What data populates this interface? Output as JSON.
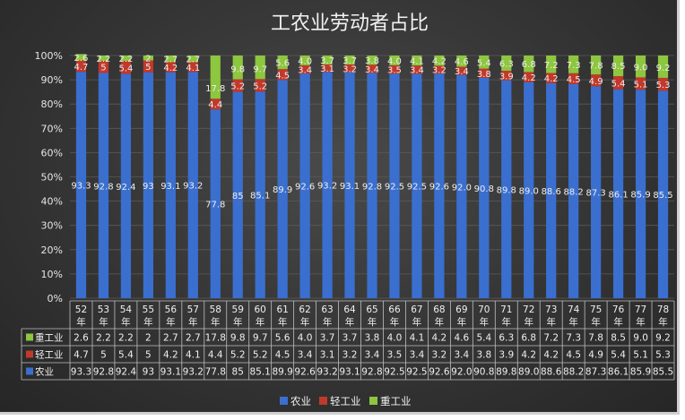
{
  "chart_data": {
    "type": "bar",
    "stacked": true,
    "title": "工农业劳动者占比",
    "categories": [
      "52年",
      "53年",
      "54年",
      "55年",
      "56年",
      "57年",
      "58年",
      "59年",
      "60年",
      "61年",
      "62年",
      "63年",
      "64年",
      "65年",
      "66年",
      "67年",
      "68年",
      "69年",
      "70年",
      "71年",
      "72年",
      "73年",
      "74年",
      "75年",
      "76年",
      "77年",
      "78年"
    ],
    "y_tick_labels": [
      "0%",
      "10%",
      "20%",
      "30%",
      "40%",
      "50%",
      "60%",
      "70%",
      "80%",
      "90%",
      "100%"
    ],
    "ylim": [
      0,
      100
    ],
    "legend_position": "bottom",
    "series": [
      {
        "name": "农业",
        "color": "#3a6fd0",
        "values": [
          93.3,
          92.8,
          92.4,
          93,
          93.1,
          93.2,
          77.8,
          85,
          85.1,
          89.9,
          92.6,
          93.2,
          93.1,
          92.8,
          92.5,
          92.5,
          92.6,
          92.0,
          90.8,
          89.8,
          89.0,
          88.6,
          88.2,
          87.3,
          86.1,
          85.9,
          85.5
        ],
        "labels": [
          "93.3",
          "92.8",
          "92.4",
          "93",
          "93.1",
          "93.2",
          "77.8",
          "85",
          "85.1",
          "89.9",
          "92.6",
          "93.2",
          "93.1",
          "92.8",
          "92.5",
          "92.5",
          "92.6",
          "92.0",
          "90.8",
          "89.8",
          "89.0",
          "88.6",
          "88.2",
          "87.3",
          "86.1",
          "85.9",
          "85.5"
        ]
      },
      {
        "name": "轻工业",
        "color": "#c0392b",
        "values": [
          4.7,
          5,
          5.4,
          5,
          4.2,
          4.1,
          4.4,
          5.2,
          5.2,
          4.5,
          3.4,
          3.1,
          3.2,
          3.4,
          3.5,
          3.4,
          3.2,
          3.4,
          3.8,
          3.9,
          4.2,
          4.2,
          4.5,
          4.9,
          5.4,
          5.1,
          5.3
        ],
        "labels": [
          "4.7",
          "5",
          "5.4",
          "5",
          "4.2",
          "4.1",
          "4.4",
          "5.2",
          "5.2",
          "4.5",
          "3.4",
          "3.1",
          "3.2",
          "3.4",
          "3.5",
          "3.4",
          "3.2",
          "3.4",
          "3.8",
          "3.9",
          "4.2",
          "4.2",
          "4.5",
          "4.9",
          "5.4",
          "5.1",
          "5.3"
        ]
      },
      {
        "name": "重工业",
        "color": "#8dc63f",
        "values": [
          2.6,
          2.2,
          2.2,
          2,
          2.7,
          2.7,
          17.8,
          9.8,
          9.7,
          5.6,
          4.0,
          3.7,
          3.7,
          3.8,
          4.0,
          4.1,
          4.2,
          4.6,
          5.4,
          6.3,
          6.8,
          7.2,
          7.3,
          7.8,
          8.5,
          9.0,
          9.2
        ],
        "labels": [
          "2.6",
          "2.2",
          "2.2",
          "2",
          "2.7",
          "2.7",
          "17.8",
          "9.8",
          "9.7",
          "5.6",
          "4.0",
          "3.7",
          "3.7",
          "3.8",
          "4.0",
          "4.1",
          "4.2",
          "4.6",
          "5.4",
          "6.3",
          "6.8",
          "7.2",
          "7.3",
          "7.8",
          "8.5",
          "9.0",
          "9.2"
        ]
      }
    ],
    "table_row_order": [
      "重工业",
      "轻工业",
      "农业"
    ]
  }
}
